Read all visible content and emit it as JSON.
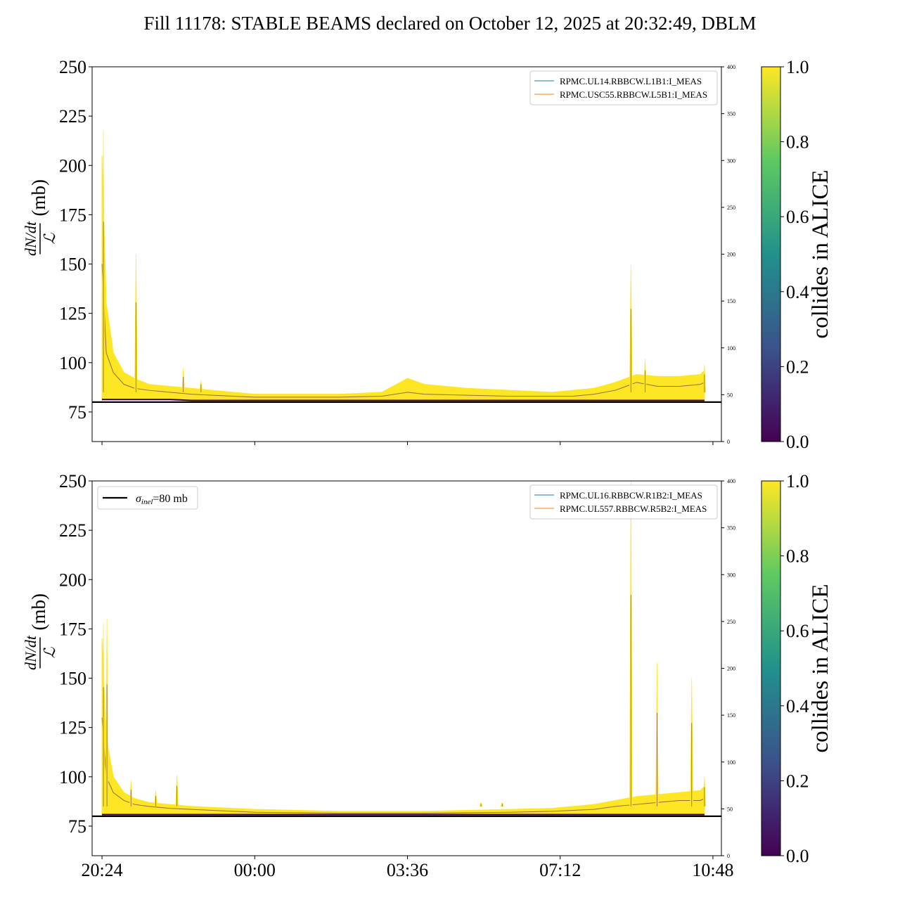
{
  "figure": {
    "title": "Fill 11178: STABLE BEAMS declared on October 12, 2025 at 20:32:49, DBLM"
  },
  "colors": {
    "ref_line": "#000000",
    "series_blue": "#1f77b4",
    "series_orange": "#ff7f0e",
    "viridis": [
      "#440154",
      "#3b528b",
      "#21918c",
      "#5ec962",
      "#fde725"
    ]
  },
  "chart_data": [
    {
      "type": "area",
      "panel": "top",
      "ylabel_num": "dN/dt",
      "ylabel_den": "ℒ",
      "ylabel_unit": "(mb)",
      "ylim": [
        60,
        250
      ],
      "yticks": [
        75,
        100,
        125,
        150,
        175,
        200,
        225,
        250
      ],
      "y2lim": [
        0,
        400
      ],
      "y2ticks": [
        0,
        50,
        100,
        150,
        200,
        250,
        300,
        350,
        400
      ],
      "x_range": [
        "20:10",
        "11:00"
      ],
      "xticks": [
        "20:24",
        "00:00",
        "03:36",
        "07:12",
        "10:48"
      ],
      "xtick_labels_shown": false,
      "reference_line": {
        "y": 80,
        "label": ""
      },
      "legend": {
        "position": "top-right",
        "entries": [
          {
            "label": "RPMC.UL14.RBBCW.L1B1:I_MEAS",
            "color": "#1f77b4"
          },
          {
            "label": "RPMC.USC55.RBBCW.L5B1:I_MEAS",
            "color": "#ff7f0e"
          }
        ]
      },
      "band": {
        "x": [
          "20:24",
          "20:30",
          "20:40",
          "20:55",
          "21:10",
          "21:30",
          "22:00",
          "22:30",
          "23:00",
          "23:30",
          "00:00",
          "01:00",
          "02:00",
          "03:00",
          "03:36",
          "04:00",
          "05:00",
          "06:00",
          "07:00",
          "07:30",
          "08:00",
          "08:30",
          "09:00",
          "09:30",
          "10:00",
          "10:30",
          "10:36"
        ],
        "upper": [
          205,
          130,
          105,
          95,
          92,
          89,
          88,
          87,
          86,
          85,
          84,
          84,
          84,
          85,
          92,
          89,
          87,
          86,
          85,
          86,
          87,
          90,
          94,
          93,
          93,
          94,
          96
        ],
        "lower": [
          81,
          81,
          81,
          81,
          81,
          81,
          81,
          80.5,
          80.5,
          80.5,
          80.5,
          80.5,
          80.5,
          80.5,
          80.5,
          80.5,
          80.5,
          80.5,
          80.5,
          80.5,
          80.5,
          80.5,
          80.5,
          80.5,
          80.5,
          80.5,
          80.5
        ],
        "mid": [
          150,
          105,
          95,
          89,
          87,
          86,
          85,
          84,
          83.5,
          83,
          82.5,
          82.5,
          82.5,
          83,
          85,
          84,
          83.5,
          83,
          83,
          83,
          84,
          86,
          90,
          88,
          88,
          89,
          90
        ]
      },
      "spikes": [
        {
          "x": "20:26",
          "y": 218
        },
        {
          "x": "21:12",
          "y": 155
        },
        {
          "x": "22:19",
          "y": 97
        },
        {
          "x": "22:44",
          "y": 91
        },
        {
          "x": "08:52",
          "y": 150
        },
        {
          "x": "09:12",
          "y": 102
        },
        {
          "x": "10:36",
          "y": 99
        }
      ],
      "colorbar": {
        "label": "collides in ALICE",
        "range": [
          0.0,
          1.0
        ],
        "ticks": [
          "0.0",
          "0.2",
          "0.4",
          "0.6",
          "0.8",
          "1.0"
        ]
      }
    },
    {
      "type": "area",
      "panel": "bottom",
      "ylabel_num": "dN/dt",
      "ylabel_den": "ℒ",
      "ylabel_unit": "(mb)",
      "ylim": [
        60,
        250
      ],
      "yticks": [
        75,
        100,
        125,
        150,
        175,
        200,
        225,
        250
      ],
      "y2lim": [
        0,
        400
      ],
      "y2ticks": [
        0,
        50,
        100,
        150,
        200,
        250,
        300,
        350,
        400
      ],
      "x_range": [
        "20:10",
        "11:00"
      ],
      "xticks": [
        "20:24",
        "00:00",
        "03:36",
        "07:12",
        "10:48"
      ],
      "xtick_labels_shown": true,
      "reference_line": {
        "y": 80,
        "label": "σinel=80 mb",
        "label_main": "σ",
        "label_sub": "inel",
        "label_rest": "=80 mb"
      },
      "legend": {
        "position": "top-right",
        "entries": [
          {
            "label": "RPMC.UL16.RBBCW.R1B2:I_MEAS",
            "color": "#1f77b4"
          },
          {
            "label": "RPMC.UL557.RBBCW.R5B2:I_MEAS",
            "color": "#ff7f0e"
          }
        ]
      },
      "band": {
        "x": [
          "20:24",
          "20:30",
          "20:40",
          "20:55",
          "21:10",
          "21:30",
          "22:00",
          "22:30",
          "23:00",
          "23:30",
          "00:00",
          "01:00",
          "02:00",
          "03:00",
          "03:36",
          "04:00",
          "05:00",
          "06:00",
          "07:00",
          "07:30",
          "08:00",
          "08:30",
          "09:00",
          "09:30",
          "10:00",
          "10:30",
          "10:36"
        ],
        "upper": [
          170,
          120,
          100,
          92,
          89,
          87,
          86,
          85,
          84.5,
          84,
          83.5,
          83,
          82.5,
          82.5,
          82.5,
          82.5,
          83,
          83.5,
          84,
          85,
          86,
          88,
          90,
          91,
          92,
          93,
          95
        ],
        "lower": [
          80.5,
          80.5,
          80.5,
          80.5,
          80.5,
          80.5,
          80.5,
          80.5,
          80.5,
          80.5,
          80.5,
          80.5,
          80.5,
          80.5,
          80.5,
          80.5,
          80.5,
          80.5,
          80.5,
          80.5,
          80.5,
          80.5,
          80.5,
          80.5,
          80.5,
          80.5,
          80.5
        ],
        "mid": [
          130,
          100,
          92,
          88,
          86,
          85,
          84,
          83.5,
          83,
          82.5,
          82,
          81.8,
          81.5,
          81.5,
          81.5,
          81.5,
          81.8,
          82,
          82.5,
          83,
          83.5,
          85,
          86,
          87,
          88,
          88,
          89
        ]
      },
      "spikes": [
        {
          "x": "20:26",
          "y": 178
        },
        {
          "x": "20:31",
          "y": 180
        },
        {
          "x": "21:05",
          "y": 98
        },
        {
          "x": "21:40",
          "y": 93
        },
        {
          "x": "22:10",
          "y": 101
        },
        {
          "x": "05:20",
          "y": 87
        },
        {
          "x": "05:50",
          "y": 87
        },
        {
          "x": "08:52",
          "y": 250
        },
        {
          "x": "09:29",
          "y": 158
        },
        {
          "x": "10:18",
          "y": 150
        },
        {
          "x": "10:36",
          "y": 100
        }
      ],
      "colorbar": {
        "label": "collides in ALICE",
        "range": [
          0.0,
          1.0
        ],
        "ticks": [
          "0.0",
          "0.2",
          "0.4",
          "0.6",
          "0.8",
          "1.0"
        ]
      }
    }
  ]
}
